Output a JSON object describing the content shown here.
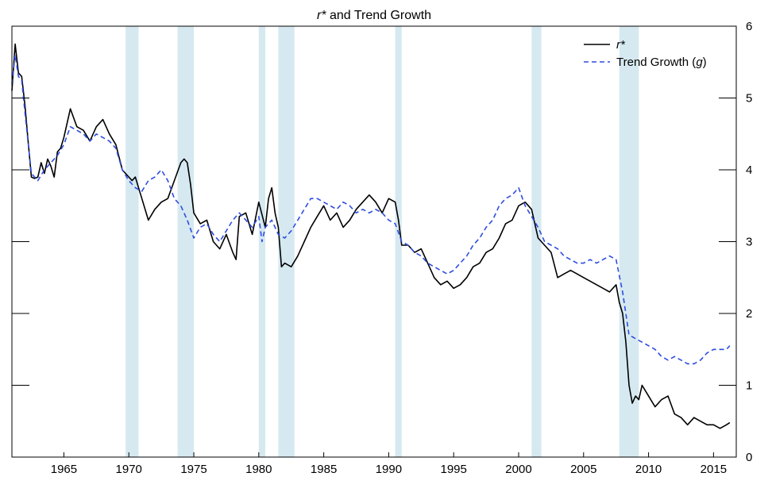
{
  "chart_data": {
    "type": "line",
    "title": "r* and Trend Growth",
    "title_parts": [
      {
        "text": "r*",
        "italic": true
      },
      {
        "text": " and Trend Growth",
        "italic": false
      }
    ],
    "xlabel": "",
    "ylabel": "",
    "xlim": [
      1961.0,
      2016.75
    ],
    "ylim": [
      0,
      6
    ],
    "x_ticks": [
      1965,
      1970,
      1975,
      1980,
      1985,
      1990,
      1995,
      2000,
      2005,
      2010,
      2015
    ],
    "x_tick_labels": [
      "1965",
      "1970",
      "1975",
      "1980",
      "1985",
      "1990",
      "1995",
      "2000",
      "2005",
      "2010",
      "2015"
    ],
    "y_ticks": [
      0,
      1,
      2,
      3,
      4,
      5,
      6
    ],
    "y_tick_labels": [
      "0",
      "1",
      "2",
      "3",
      "4",
      "5",
      "6"
    ],
    "y_axis_side": "right",
    "grid": false,
    "legend_position": "top-right",
    "recessions": [
      [
        1969.75,
        1970.75
      ],
      [
        1973.75,
        1975.0
      ],
      [
        1980.0,
        1980.5
      ],
      [
        1981.5,
        1982.75
      ],
      [
        1990.5,
        1991.0
      ],
      [
        2001.0,
        2001.75
      ],
      [
        2007.75,
        2009.25
      ]
    ],
    "recession_color": "#d6e9f1",
    "series": [
      {
        "name": "r*",
        "legend_label": [
          {
            "text": "r*",
            "italic": true
          }
        ],
        "color": "#000000",
        "style": "solid",
        "x": [
          1961.0,
          1961.25,
          1961.5,
          1961.75,
          1962.0,
          1962.25,
          1962.5,
          1962.75,
          1963.0,
          1963.25,
          1963.5,
          1963.75,
          1964.0,
          1964.25,
          1964.5,
          1964.75,
          1965.0,
          1965.5,
          1966.0,
          1966.5,
          1967.0,
          1967.5,
          1968.0,
          1968.5,
          1969.0,
          1969.5,
          1970.0,
          1970.25,
          1970.5,
          1971.0,
          1971.5,
          1972.0,
          1972.5,
          1973.0,
          1973.5,
          1974.0,
          1974.25,
          1974.5,
          1974.75,
          1975.0,
          1975.5,
          1976.0,
          1976.5,
          1977.0,
          1977.5,
          1978.0,
          1978.25,
          1978.5,
          1979.0,
          1979.5,
          1980.0,
          1980.5,
          1980.75,
          1981.0,
          1981.25,
          1981.5,
          1981.75,
          1982.0,
          1982.5,
          1983.0,
          1983.5,
          1984.0,
          1984.5,
          1985.0,
          1985.5,
          1986.0,
          1986.5,
          1987.0,
          1987.5,
          1988.0,
          1988.5,
          1989.0,
          1989.5,
          1990.0,
          1990.5,
          1990.75,
          1991.0,
          1991.5,
          1992.0,
          1992.5,
          1993.0,
          1993.5,
          1994.0,
          1994.5,
          1995.0,
          1995.5,
          1996.0,
          1996.5,
          1997.0,
          1997.5,
          1998.0,
          1998.5,
          1999.0,
          1999.5,
          2000.0,
          2000.5,
          2001.0,
          2001.5,
          2002.0,
          2002.5,
          2003.0,
          2003.5,
          2004.0,
          2004.5,
          2005.0,
          2005.5,
          2006.0,
          2006.5,
          2007.0,
          2007.5,
          2007.75,
          2008.0,
          2008.25,
          2008.5,
          2008.75,
          2009.0,
          2009.25,
          2009.5,
          2010.0,
          2010.5,
          2011.0,
          2011.5,
          2012.0,
          2012.5,
          2013.0,
          2013.5,
          2014.0,
          2014.5,
          2015.0,
          2015.5,
          2016.0,
          2016.25
        ],
        "values": [
          5.1,
          5.75,
          5.35,
          5.3,
          4.9,
          4.4,
          3.9,
          3.88,
          3.9,
          4.1,
          3.95,
          4.15,
          4.05,
          3.9,
          4.25,
          4.3,
          4.45,
          4.85,
          4.6,
          4.55,
          4.4,
          4.6,
          4.7,
          4.5,
          4.35,
          4.0,
          3.9,
          3.85,
          3.9,
          3.6,
          3.3,
          3.45,
          3.55,
          3.6,
          3.85,
          4.1,
          4.15,
          4.1,
          3.8,
          3.4,
          3.25,
          3.3,
          3.0,
          2.9,
          3.1,
          2.85,
          2.75,
          3.35,
          3.4,
          3.1,
          3.55,
          3.2,
          3.6,
          3.75,
          3.4,
          3.2,
          2.65,
          2.7,
          2.65,
          2.8,
          3.0,
          3.2,
          3.35,
          3.5,
          3.3,
          3.4,
          3.2,
          3.3,
          3.45,
          3.55,
          3.65,
          3.55,
          3.4,
          3.6,
          3.55,
          3.3,
          2.95,
          2.95,
          2.85,
          2.9,
          2.7,
          2.5,
          2.4,
          2.45,
          2.35,
          2.4,
          2.5,
          2.65,
          2.7,
          2.85,
          2.9,
          3.05,
          3.25,
          3.3,
          3.5,
          3.55,
          3.45,
          3.05,
          2.95,
          2.85,
          2.5,
          2.55,
          2.6,
          2.55,
          2.5,
          2.45,
          2.4,
          2.35,
          2.3,
          2.4,
          2.15,
          2.0,
          1.6,
          1.0,
          0.75,
          0.85,
          0.8,
          1.0,
          0.85,
          0.7,
          0.8,
          0.85,
          0.6,
          0.55,
          0.45,
          0.55,
          0.5,
          0.45,
          0.45,
          0.4,
          0.45,
          0.48
        ]
      },
      {
        "name": "Trend Growth (g)",
        "legend_label": [
          {
            "text": "Trend Growth (",
            "italic": false
          },
          {
            "text": "g",
            "italic": true
          },
          {
            "text": ")",
            "italic": false
          }
        ],
        "color": "#2f4de0",
        "style": "dashed",
        "x": [
          1961.0,
          1961.25,
          1961.5,
          1961.75,
          1962.0,
          1962.5,
          1963.0,
          1963.5,
          1964.0,
          1964.5,
          1965.0,
          1965.5,
          1966.0,
          1966.5,
          1967.0,
          1967.5,
          1968.0,
          1968.5,
          1969.0,
          1969.5,
          1970.0,
          1970.5,
          1971.0,
          1971.5,
          1972.0,
          1972.5,
          1973.0,
          1973.5,
          1974.0,
          1974.5,
          1975.0,
          1975.5,
          1976.0,
          1976.5,
          1977.0,
          1977.5,
          1978.0,
          1978.5,
          1979.0,
          1979.5,
          1980.0,
          1980.25,
          1980.5,
          1981.0,
          1981.5,
          1982.0,
          1982.5,
          1983.0,
          1983.5,
          1984.0,
          1984.5,
          1985.0,
          1985.5,
          1986.0,
          1986.5,
          1987.0,
          1987.5,
          1988.0,
          1988.5,
          1989.0,
          1989.5,
          1990.0,
          1990.5,
          1991.0,
          1991.5,
          1992.0,
          1992.5,
          1993.0,
          1993.5,
          1994.0,
          1994.5,
          1995.0,
          1995.5,
          1996.0,
          1996.5,
          1997.0,
          1997.5,
          1998.0,
          1998.5,
          1999.0,
          1999.5,
          2000.0,
          2000.5,
          2001.0,
          2001.5,
          2002.0,
          2002.5,
          2003.0,
          2003.5,
          2004.0,
          2004.5,
          2005.0,
          2005.5,
          2006.0,
          2006.5,
          2007.0,
          2007.5,
          2008.0,
          2008.5,
          2009.0,
          2009.5,
          2010.0,
          2010.5,
          2011.0,
          2011.5,
          2012.0,
          2012.5,
          2013.0,
          2013.5,
          2014.0,
          2014.5,
          2015.0,
          2015.5,
          2016.0,
          2016.25
        ],
        "values": [
          5.2,
          5.6,
          5.3,
          5.25,
          4.8,
          3.95,
          3.85,
          4.0,
          4.1,
          4.2,
          4.35,
          4.6,
          4.55,
          4.5,
          4.4,
          4.5,
          4.45,
          4.4,
          4.3,
          4.0,
          3.85,
          3.75,
          3.7,
          3.85,
          3.9,
          4.0,
          3.85,
          3.6,
          3.5,
          3.3,
          3.05,
          3.2,
          3.25,
          3.1,
          3.0,
          3.15,
          3.3,
          3.4,
          3.3,
          3.2,
          3.35,
          3.0,
          3.2,
          3.3,
          3.1,
          3.05,
          3.15,
          3.3,
          3.45,
          3.6,
          3.6,
          3.55,
          3.5,
          3.45,
          3.55,
          3.5,
          3.4,
          3.45,
          3.4,
          3.45,
          3.4,
          3.3,
          3.25,
          3.0,
          2.95,
          2.85,
          2.8,
          2.7,
          2.65,
          2.6,
          2.55,
          2.6,
          2.7,
          2.8,
          2.95,
          3.05,
          3.2,
          3.3,
          3.5,
          3.6,
          3.65,
          3.75,
          3.5,
          3.35,
          3.2,
          3.0,
          2.95,
          2.9,
          2.8,
          2.75,
          2.7,
          2.7,
          2.75,
          2.7,
          2.75,
          2.8,
          2.75,
          2.3,
          1.7,
          1.65,
          1.6,
          1.55,
          1.5,
          1.4,
          1.35,
          1.4,
          1.35,
          1.3,
          1.3,
          1.35,
          1.45,
          1.5,
          1.5,
          1.5,
          1.55
        ]
      }
    ]
  }
}
